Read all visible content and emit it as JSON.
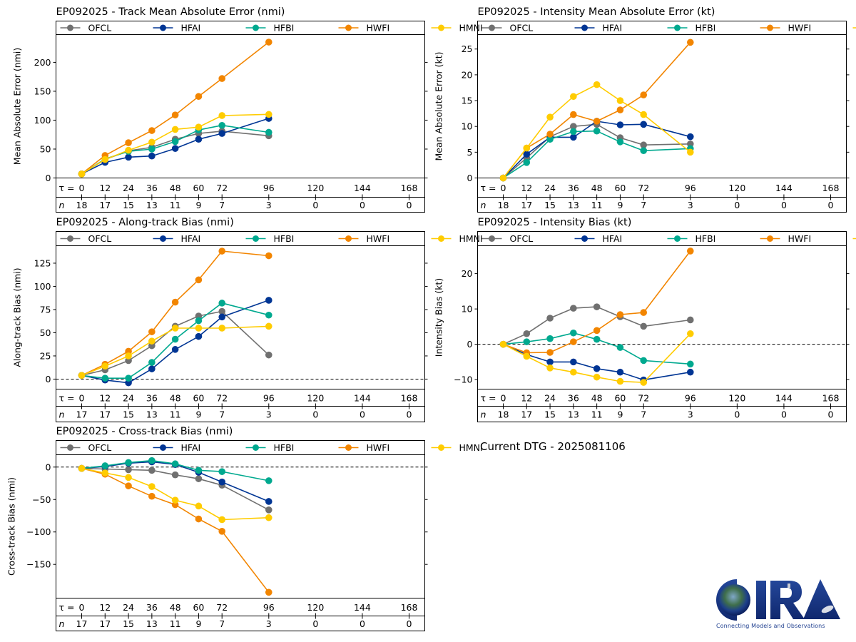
{
  "figure": {
    "dtg_text": "Current DTG - 2025081106",
    "logo": {
      "text": "CIRA",
      "tagline": "Connecting Models and Observations",
      "icon": "cira-logo-icon"
    }
  },
  "series_styles": [
    {
      "name": "OFCL",
      "color": "#707070"
    },
    {
      "name": "HFAI",
      "color": "#003594"
    },
    {
      "name": "HFBI",
      "color": "#00A98F"
    },
    {
      "name": "HWFI",
      "color": "#F28500"
    },
    {
      "name": "HMNI",
      "color": "#FFCC00"
    }
  ],
  "chart_data": [
    {
      "id": "track-mae",
      "type": "line",
      "title": "EP092025 - Track Mean Absolute Error (nmi)",
      "xlabel": "τ",
      "ylabel": "Mean Absolute Error (nmi)",
      "x_tick_prefix": "τ = ",
      "n_label": "n",
      "x": [
        0,
        12,
        24,
        36,
        48,
        60,
        72,
        96
      ],
      "x_ticks": [
        0,
        12,
        24,
        36,
        48,
        60,
        72,
        96,
        120,
        144,
        168
      ],
      "n_counts": [
        18,
        17,
        15,
        13,
        11,
        9,
        7,
        3,
        0,
        0,
        0
      ],
      "xlim": [
        0,
        168
      ],
      "ylim": [
        0,
        248
      ],
      "y_ticks": [
        0,
        50,
        100,
        150,
        200
      ],
      "zero_line": false,
      "legend": "top",
      "series": [
        {
          "name": "OFCL",
          "values": [
            7,
            32,
            47,
            53,
            67,
            77,
            81,
            73
          ]
        },
        {
          "name": "HFAI",
          "values": [
            7,
            27,
            36,
            38,
            51,
            67,
            77,
            103
          ]
        },
        {
          "name": "HFBI",
          "values": [
            7,
            33,
            46,
            50,
            63,
            83,
            91,
            79
          ]
        },
        {
          "name": "HWFI",
          "values": [
            7,
            39,
            61,
            82,
            109,
            141,
            172,
            235
          ]
        },
        {
          "name": "HMNI",
          "values": [
            7,
            32,
            48,
            62,
            84,
            88,
            108,
            110
          ]
        }
      ]
    },
    {
      "id": "intensity-mae",
      "type": "line",
      "title": "EP092025 - Intensity Mean Absolute Error (kt)",
      "xlabel": "τ",
      "ylabel": "Mean Absolute Error (kt)",
      "x_tick_prefix": "τ = ",
      "n_label": "n",
      "x": [
        0,
        12,
        24,
        36,
        48,
        60,
        72,
        96
      ],
      "x_ticks": [
        0,
        12,
        24,
        36,
        48,
        60,
        72,
        96,
        120,
        144,
        168
      ],
      "n_counts": [
        18,
        17,
        15,
        13,
        11,
        9,
        7,
        3,
        0,
        0,
        0
      ],
      "xlim": [
        0,
        168
      ],
      "ylim": [
        0,
        27.8
      ],
      "y_ticks": [
        0,
        5,
        10,
        15,
        20,
        25
      ],
      "zero_line": false,
      "legend": "top",
      "series": [
        {
          "name": "OFCL",
          "values": [
            0,
            3.9,
            8.0,
            10.0,
            10.4,
            7.8,
            6.4,
            6.6
          ]
        },
        {
          "name": "HFAI",
          "values": [
            0,
            4.6,
            7.9,
            7.9,
            11.0,
            10.3,
            10.4,
            8.0
          ]
        },
        {
          "name": "HFBI",
          "values": [
            0,
            3.0,
            7.5,
            9.0,
            9.1,
            7.0,
            5.3,
            5.7
          ]
        },
        {
          "name": "HWFI",
          "values": [
            0,
            5.8,
            8.5,
            12.3,
            11.0,
            13.2,
            16.1,
            26.3
          ]
        },
        {
          "name": "HMNI",
          "values": [
            0,
            5.8,
            11.8,
            15.8,
            18.1,
            15.0,
            12.3,
            5.0
          ]
        }
      ]
    },
    {
      "id": "along-track-bias",
      "type": "line",
      "title": "EP092025 - Along-track Bias (nmi)",
      "xlabel": "τ",
      "ylabel": "Along-track Bias (nmi)",
      "x_tick_prefix": "τ = ",
      "n_label": "n",
      "x": [
        0,
        12,
        24,
        36,
        48,
        60,
        72,
        96
      ],
      "x_ticks": [
        0,
        12,
        24,
        36,
        48,
        60,
        72,
        96,
        120,
        144,
        168
      ],
      "n_counts": [
        17,
        17,
        15,
        13,
        11,
        9,
        7,
        3,
        0,
        0,
        0
      ],
      "xlim": [
        0,
        168
      ],
      "ylim": [
        -10.8,
        143.8
      ],
      "y_ticks": [
        0,
        25,
        50,
        75,
        100,
        125
      ],
      "zero_line": true,
      "legend": "top",
      "series": [
        {
          "name": "OFCL",
          "values": [
            4,
            10,
            20,
            36,
            57,
            68,
            73,
            26
          ]
        },
        {
          "name": "HFAI",
          "values": [
            4,
            -1,
            -4,
            11,
            32,
            46,
            67,
            85
          ]
        },
        {
          "name": "HFBI",
          "values": [
            4,
            1,
            1,
            18,
            43,
            63,
            82,
            69
          ]
        },
        {
          "name": "HWFI",
          "values": [
            4,
            16,
            30,
            51,
            83,
            107,
            138,
            133
          ]
        },
        {
          "name": "HMNI",
          "values": [
            4,
            14,
            25,
            41,
            55,
            55,
            55,
            57
          ]
        }
      ]
    },
    {
      "id": "intensity-bias",
      "type": "line",
      "title": "EP092025 - Intensity Bias (kt)",
      "xlabel": "τ",
      "ylabel": "Intensity Bias (kt)",
      "x_tick_prefix": "τ = ",
      "n_label": "n",
      "x": [
        0,
        12,
        24,
        36,
        48,
        60,
        72,
        96
      ],
      "x_ticks": [
        0,
        12,
        24,
        36,
        48,
        60,
        72,
        96,
        120,
        144,
        168
      ],
      "n_counts": [
        18,
        17,
        15,
        13,
        11,
        9,
        7,
        3,
        0,
        0,
        0
      ],
      "xlim": [
        0,
        168
      ],
      "ylim": [
        -12.7,
        27.9
      ],
      "y_ticks": [
        -10,
        0,
        10,
        20
      ],
      "zero_line": true,
      "legend": "top",
      "series": [
        {
          "name": "OFCL",
          "values": [
            0,
            3.0,
            7.4,
            10.2,
            10.6,
            7.8,
            5.1,
            6.9
          ]
        },
        {
          "name": "HFAI",
          "values": [
            0,
            -2.9,
            -5.0,
            -5.0,
            -6.9,
            -7.9,
            -10.1,
            -7.9
          ]
        },
        {
          "name": "HFBI",
          "values": [
            0,
            0.7,
            1.6,
            3.2,
            1.4,
            -0.9,
            -4.6,
            -5.6
          ]
        },
        {
          "name": "HWFI",
          "values": [
            0,
            -2.4,
            -2.3,
            0.7,
            3.9,
            8.4,
            9.0,
            26.4
          ]
        },
        {
          "name": "HMNI",
          "values": [
            0,
            -3.4,
            -6.7,
            -7.9,
            -9.3,
            -10.5,
            -10.8,
            3.0
          ]
        }
      ]
    },
    {
      "id": "cross-track-bias",
      "type": "line",
      "title": "EP092025 - Cross-track Bias (nmi)",
      "xlabel": "τ",
      "ylabel": "Cross-track Bias (nmi)",
      "x_tick_prefix": "τ = ",
      "n_label": "n",
      "x": [
        0,
        12,
        24,
        36,
        48,
        60,
        72,
        96
      ],
      "x_ticks": [
        0,
        12,
        24,
        36,
        48,
        60,
        72,
        96,
        120,
        144,
        168
      ],
      "n_counts": [
        17,
        17,
        15,
        13,
        11,
        9,
        7,
        3,
        0,
        0,
        0
      ],
      "xlim": [
        0,
        168
      ],
      "ylim": [
        -202,
        19
      ],
      "y_ticks": [
        -150,
        -100,
        -50,
        0
      ],
      "zero_line": true,
      "legend": "top",
      "series": [
        {
          "name": "OFCL",
          "values": [
            -2,
            -3,
            -4,
            -5,
            -12,
            -18,
            -28,
            -66
          ]
        },
        {
          "name": "HFAI",
          "values": [
            -2,
            1,
            6,
            8,
            4,
            -8,
            -23,
            -53
          ]
        },
        {
          "name": "HFBI",
          "values": [
            -2,
            2,
            7,
            10,
            5,
            -5,
            -7,
            -21
          ]
        },
        {
          "name": "HWFI",
          "values": [
            -2,
            -11,
            -29,
            -45,
            -58,
            -80,
            -99,
            -193
          ]
        },
        {
          "name": "HMNI",
          "values": [
            -2,
            -9,
            -16,
            -30,
            -51,
            -60,
            -81,
            -78
          ]
        }
      ]
    }
  ]
}
